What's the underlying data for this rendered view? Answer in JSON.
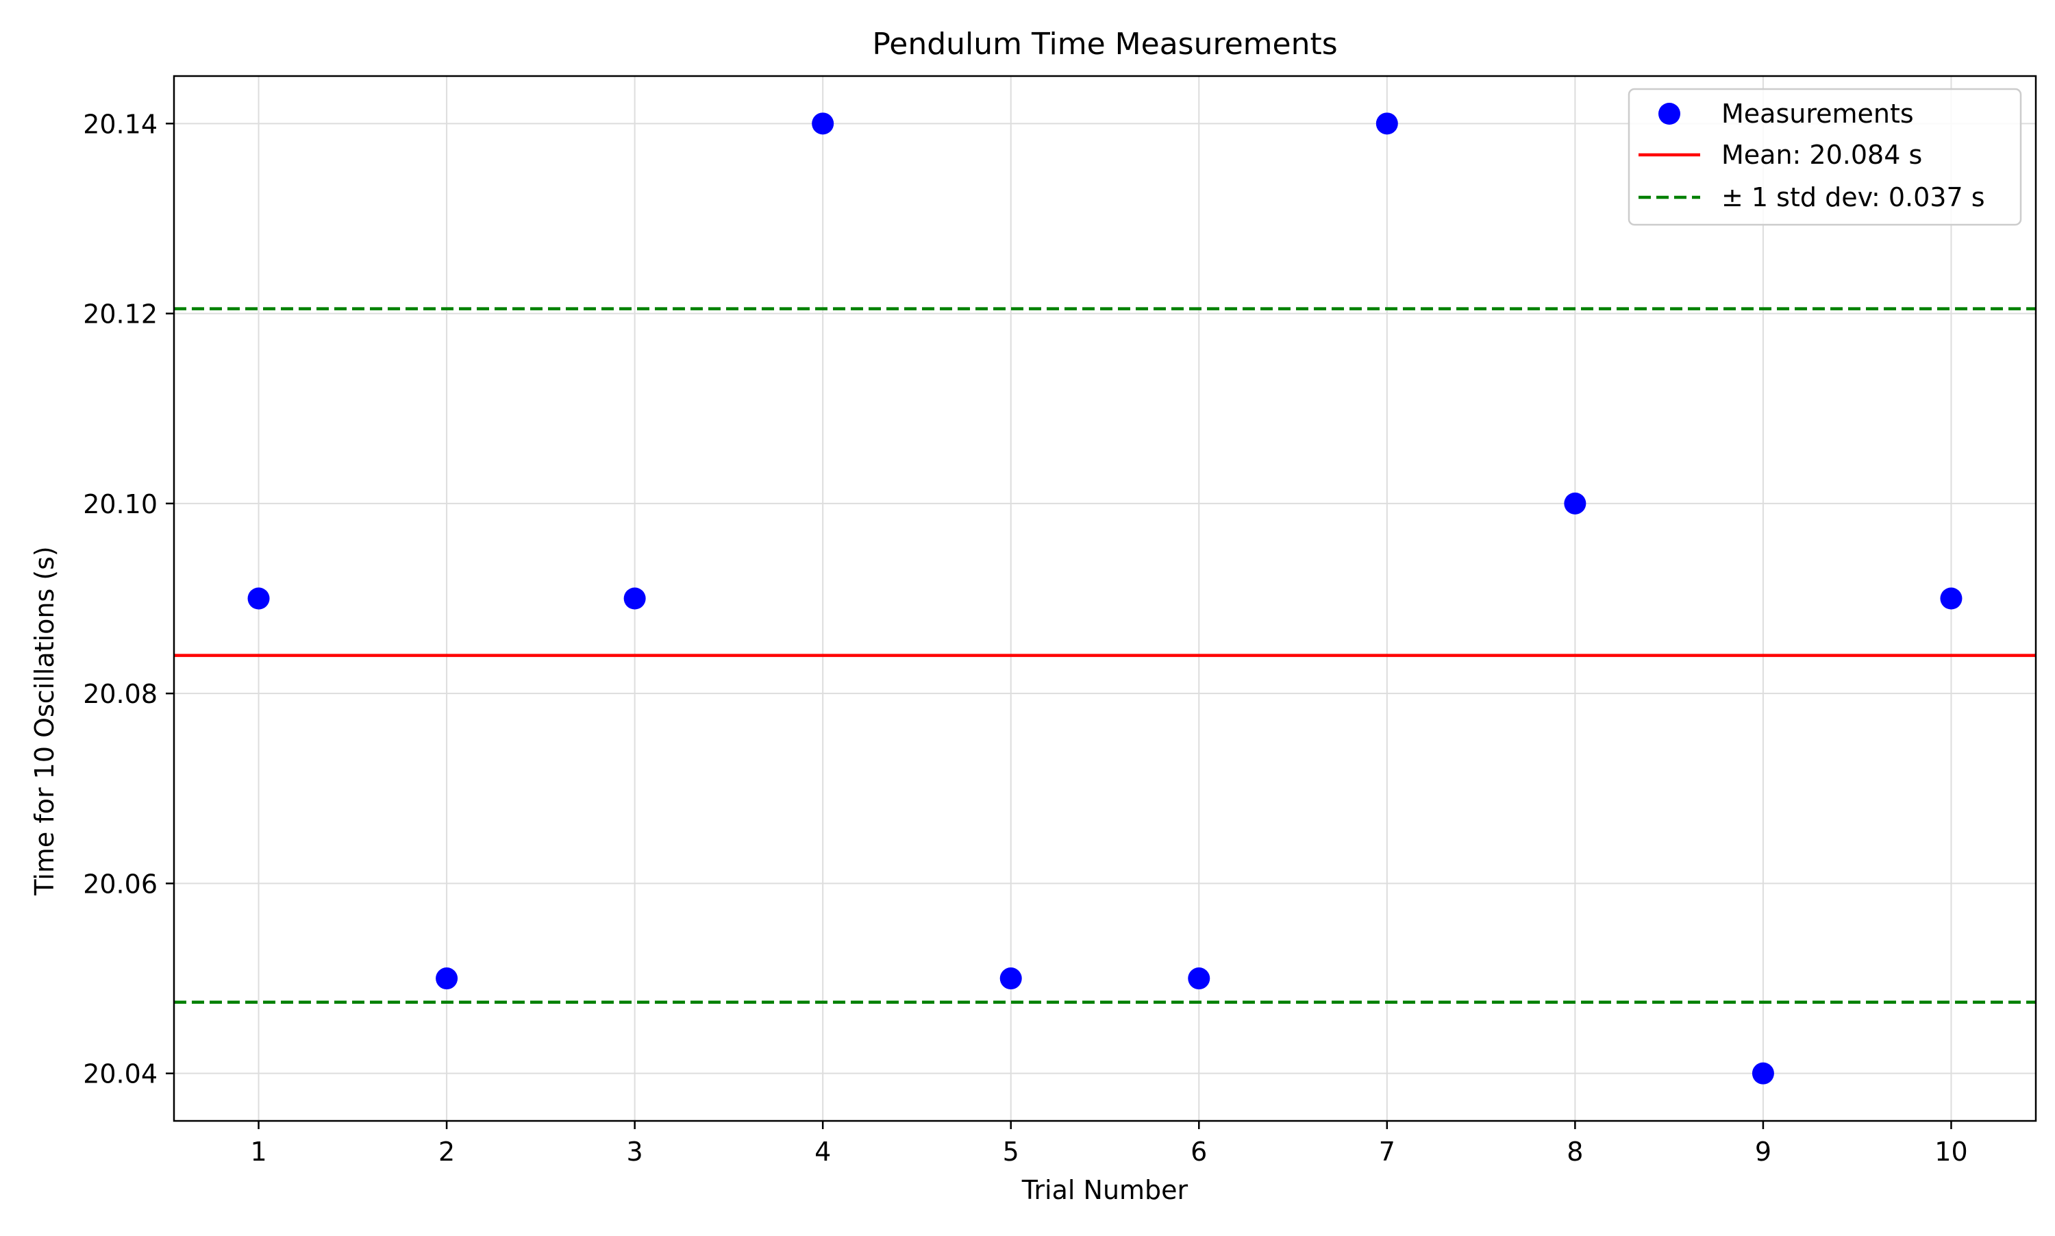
{
  "chart_data": {
    "type": "scatter",
    "title": "Pendulum Time Measurements",
    "xlabel": "Trial Number",
    "ylabel": "Time for 10 Oscillations (s)",
    "xlim": [
      0.55,
      10.45
    ],
    "ylim": [
      20.035,
      20.145
    ],
    "xticks": [
      1,
      2,
      3,
      4,
      5,
      6,
      7,
      8,
      9,
      10
    ],
    "xtick_labels": [
      "1",
      "2",
      "3",
      "4",
      "5",
      "6",
      "7",
      "8",
      "9",
      "10"
    ],
    "yticks": [
      20.04,
      20.06,
      20.08,
      20.1,
      20.12,
      20.14
    ],
    "ytick_labels": [
      "20.04",
      "20.06",
      "20.08",
      "20.10",
      "20.12",
      "20.14"
    ],
    "grid": true,
    "legend_position": "top-right",
    "series": [
      {
        "name": "Measurements",
        "kind": "scatter",
        "color": "#0000ff",
        "x": [
          1,
          2,
          3,
          4,
          5,
          6,
          7,
          8,
          9,
          10
        ],
        "y": [
          20.09,
          20.05,
          20.09,
          20.14,
          20.05,
          20.05,
          20.14,
          20.1,
          20.04,
          20.09
        ]
      },
      {
        "name": "Mean: 20.084 s",
        "kind": "hline",
        "style": "solid",
        "color": "#ff0000",
        "y": 20.084
      },
      {
        "name": "± 1 std dev: 0.037 s",
        "kind": "hline-pair",
        "style": "dashed",
        "color": "#008000",
        "y": [
          20.0475,
          20.1205
        ]
      }
    ]
  }
}
